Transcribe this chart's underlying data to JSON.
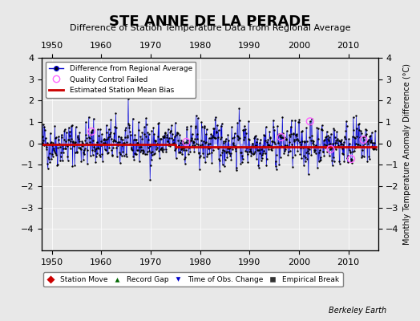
{
  "title": "STE ANNE DE LA PERADE",
  "subtitle": "Difference of Station Temperature Data from Regional Average",
  "ylabel": "Monthly Temperature Anomaly Difference (°C)",
  "xlabel_bottom": "Berkeley Earth",
  "xlim": [
    1948,
    2016
  ],
  "ylim": [
    -5,
    4
  ],
  "yticks": [
    -4,
    -3,
    -2,
    -1,
    0,
    1,
    2,
    3,
    4
  ],
  "xticks": [
    1950,
    1960,
    1970,
    1980,
    1990,
    2000,
    2010
  ],
  "bg_color": "#e8e8e8",
  "line_color": "#0000cc",
  "bar_color": "#aaaaff",
  "dot_color": "#000000",
  "bias_color": "#cc0000",
  "qc_color": "#ff66ff",
  "legend1_items": [
    "Difference from Regional Average",
    "Quality Control Failed",
    "Estimated Station Mean Bias"
  ],
  "bottom_legend": [
    "Station Move",
    "Record Gap",
    "Time of Obs. Change",
    "Empirical Break"
  ],
  "bottom_legend_colors": [
    "#cc0000",
    "#006600",
    "#0000cc",
    "#333333"
  ],
  "bottom_legend_markers": [
    "D",
    "^",
    "v",
    "s"
  ]
}
